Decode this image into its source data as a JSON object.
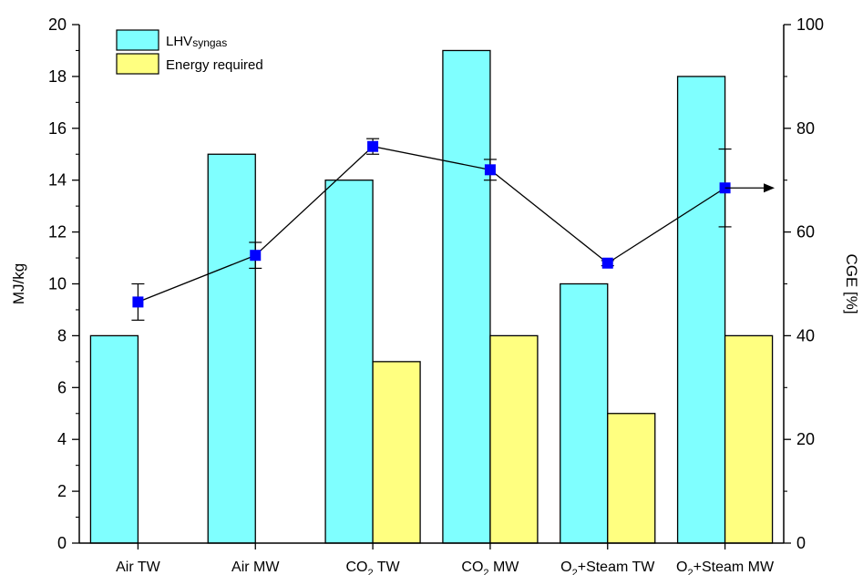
{
  "chart_data": {
    "type": "bar",
    "categories": [
      {
        "main": "Air TW",
        "sub": "",
        "tail": ""
      },
      {
        "main": "Air MW",
        "sub": "",
        "tail": ""
      },
      {
        "main": "CO",
        "sub": "2",
        "tail": " TW"
      },
      {
        "main": "CO",
        "sub": "2",
        "tail": " MW"
      },
      {
        "main": "O",
        "sub": "2",
        "tail": "+Steam TW"
      },
      {
        "main": "O",
        "sub": "2",
        "tail": "+Steam MW"
      }
    ],
    "series": [
      {
        "name": "LHV",
        "name_sub": "syngas",
        "color": "#7FFFFF",
        "values": [
          8,
          15,
          14,
          19,
          10,
          18
        ]
      },
      {
        "name": "Energy required",
        "name_sub": "",
        "color": "#FFFF80",
        "values": [
          0,
          0,
          7,
          8,
          5,
          8
        ]
      }
    ],
    "line_series": {
      "axis": "right",
      "color": "#0000FF",
      "values": [
        46.5,
        55.5,
        76.5,
        72,
        54,
        68.5
      ],
      "errors": [
        3.5,
        2.5,
        1.5,
        2,
        0.5,
        7.5
      ]
    },
    "y_left": {
      "label": "MJ/kg",
      "lim": [
        0,
        20
      ],
      "ticks": [
        0,
        2,
        4,
        6,
        8,
        10,
        12,
        14,
        16,
        18,
        20
      ]
    },
    "y_right": {
      "label": "CGE [%]",
      "lim": [
        0,
        100
      ],
      "ticks": [
        0,
        20,
        40,
        60,
        80,
        100
      ]
    },
    "legend": "top-left"
  }
}
